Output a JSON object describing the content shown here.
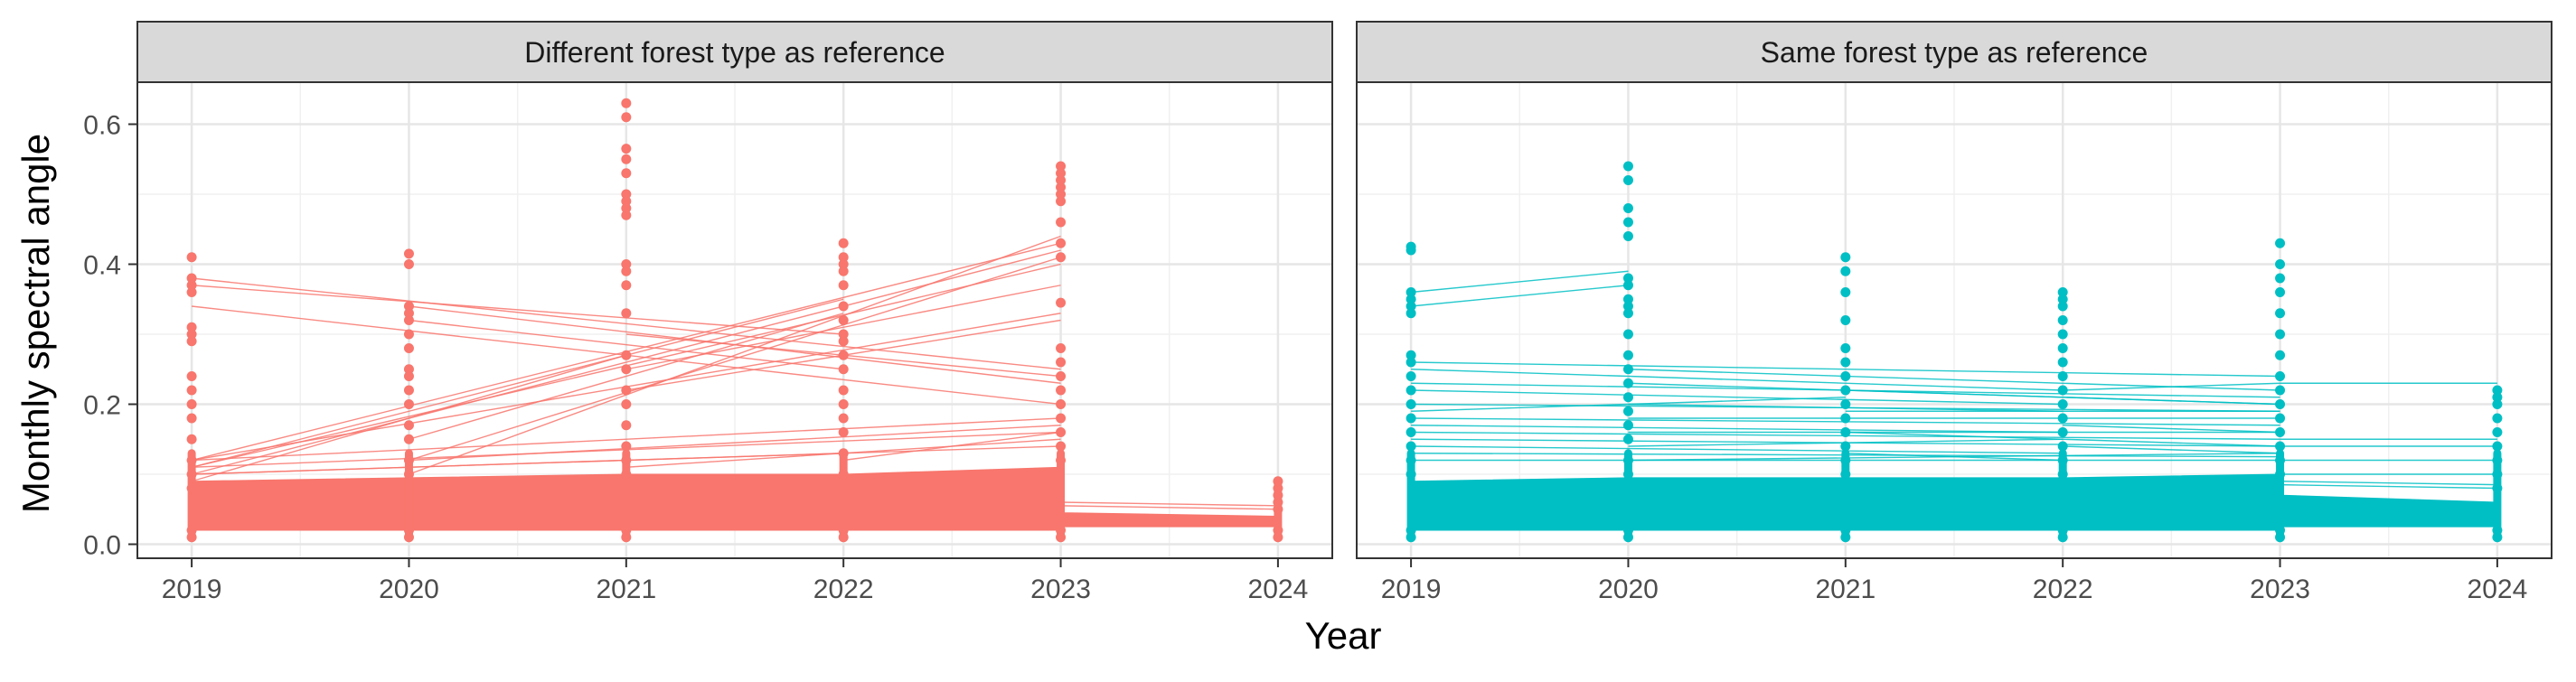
{
  "chart_data": {
    "type": "line",
    "ylabel": "Monthly spectral angle",
    "xlabel": "Year",
    "x_ticks": [
      "2019",
      "2020",
      "2021",
      "2022",
      "2023",
      "2024"
    ],
    "y_ticks": [
      "0.0",
      "0.2",
      "0.4",
      "0.6"
    ],
    "ylim": [
      -0.02,
      0.66
    ],
    "xlim": [
      2018.75,
      2024.25
    ],
    "grid": true,
    "legend": "none",
    "panels": [
      {
        "title": "Different forest type as reference",
        "color": "#F8766D",
        "dense_band": [
          {
            "x": 2019,
            "lo": 0.02,
            "hi": 0.09
          },
          {
            "x": 2020,
            "lo": 0.02,
            "hi": 0.095
          },
          {
            "x": 2021,
            "lo": 0.02,
            "hi": 0.1
          },
          {
            "x": 2022,
            "lo": 0.02,
            "hi": 0.1
          },
          {
            "x": 2023,
            "lo": 0.02,
            "hi": 0.11
          },
          {
            "x": 2023.01,
            "lo": 0.025,
            "hi": 0.045
          },
          {
            "x": 2024,
            "lo": 0.025,
            "hi": 0.04
          }
        ],
        "points": [
          {
            "x": 2019,
            "values": [
              0.01,
              0.02,
              0.08,
              0.1,
              0.12,
              0.15,
              0.18,
              0.2,
              0.22,
              0.24,
              0.29,
              0.3,
              0.31,
              0.36,
              0.37,
              0.38,
              0.41
            ]
          },
          {
            "x": 2020,
            "values": [
              0.01,
              0.02,
              0.1,
              0.12,
              0.15,
              0.17,
              0.2,
              0.22,
              0.24,
              0.25,
              0.28,
              0.3,
              0.32,
              0.33,
              0.34,
              0.4,
              0.415
            ]
          },
          {
            "x": 2021,
            "values": [
              0.01,
              0.02,
              0.1,
              0.12,
              0.14,
              0.17,
              0.2,
              0.22,
              0.25,
              0.27,
              0.33,
              0.37,
              0.39,
              0.4,
              0.47,
              0.48,
              0.49,
              0.5,
              0.53,
              0.55,
              0.565,
              0.61,
              0.63
            ]
          },
          {
            "x": 2022,
            "values": [
              0.01,
              0.02,
              0.1,
              0.13,
              0.16,
              0.18,
              0.2,
              0.22,
              0.25,
              0.27,
              0.29,
              0.3,
              0.32,
              0.34,
              0.37,
              0.39,
              0.4,
              0.41,
              0.43
            ]
          },
          {
            "x": 2023,
            "values": [
              0.01,
              0.02,
              0.12,
              0.14,
              0.16,
              0.18,
              0.2,
              0.22,
              0.24,
              0.26,
              0.28,
              0.345,
              0.41,
              0.43,
              0.46,
              0.49,
              0.5,
              0.51,
              0.52,
              0.53,
              0.54
            ]
          },
          {
            "x": 2024,
            "values": [
              0.01,
              0.02,
              0.05,
              0.06,
              0.07,
              0.08,
              0.09
            ]
          }
        ],
        "highlight_lines": [
          [
            [
              2019,
              0.38
            ],
            [
              2023,
              0.25
            ]
          ],
          [
            [
              2019,
              0.37
            ],
            [
              2022,
              0.3
            ]
          ],
          [
            [
              2019,
              0.34
            ],
            [
              2023,
              0.2
            ]
          ],
          [
            [
              2019,
              0.12
            ],
            [
              2023,
              0.43
            ]
          ],
          [
            [
              2019,
              0.11
            ],
            [
              2023,
              0.4
            ]
          ],
          [
            [
              2019,
              0.1
            ],
            [
              2023,
              0.42
            ]
          ],
          [
            [
              2019,
              0.11
            ],
            [
              2022,
              0.35
            ]
          ],
          [
            [
              2019,
              0.12
            ],
            [
              2023,
              0.33
            ]
          ],
          [
            [
              2019,
              0.09
            ],
            [
              2021,
              0.27
            ]
          ],
          [
            [
              2020,
              0.34
            ],
            [
              2023,
              0.23
            ]
          ],
          [
            [
              2020,
              0.32
            ],
            [
              2022,
              0.25
            ]
          ],
          [
            [
              2020,
              0.1
            ],
            [
              2023,
              0.44
            ]
          ],
          [
            [
              2020,
              0.12
            ],
            [
              2023,
              0.41
            ]
          ],
          [
            [
              2020,
              0.15
            ],
            [
              2022,
              0.33
            ]
          ],
          [
            [
              2021,
              0.3
            ],
            [
              2023,
              0.24
            ]
          ],
          [
            [
              2021,
              0.25
            ],
            [
              2023,
              0.37
            ]
          ],
          [
            [
              2021,
              0.22
            ],
            [
              2023,
              0.32
            ]
          ],
          [
            [
              2019,
              0.12
            ],
            [
              2023,
              0.18
            ]
          ],
          [
            [
              2019,
              0.11
            ],
            [
              2023,
              0.16
            ]
          ],
          [
            [
              2019,
              0.1
            ],
            [
              2023,
              0.14
            ]
          ],
          [
            [
              2020,
              0.12
            ],
            [
              2023,
              0.17
            ]
          ],
          [
            [
              2021,
              0.11
            ],
            [
              2023,
              0.15
            ]
          ],
          [
            [
              2022,
              0.12
            ],
            [
              2023,
              0.16
            ]
          ],
          [
            [
              2019,
              0.1
            ],
            [
              2022,
              0.13
            ]
          ],
          [
            [
              2023,
              0.06
            ],
            [
              2024,
              0.055
            ]
          ],
          [
            [
              2023,
              0.055
            ],
            [
              2024,
              0.05
            ]
          ]
        ]
      },
      {
        "title": "Same forest type as reference",
        "color": "#00BFC4",
        "dense_band": [
          {
            "x": 2019,
            "lo": 0.02,
            "hi": 0.09
          },
          {
            "x": 2020,
            "lo": 0.02,
            "hi": 0.095
          },
          {
            "x": 2021,
            "lo": 0.02,
            "hi": 0.095
          },
          {
            "x": 2022,
            "lo": 0.02,
            "hi": 0.095
          },
          {
            "x": 2023,
            "lo": 0.02,
            "hi": 0.1
          },
          {
            "x": 2023.01,
            "lo": 0.025,
            "hi": 0.07
          },
          {
            "x": 2024,
            "lo": 0.025,
            "hi": 0.06
          }
        ],
        "points": [
          {
            "x": 2019,
            "values": [
              0.01,
              0.02,
              0.1,
              0.12,
              0.14,
              0.16,
              0.18,
              0.2,
              0.22,
              0.24,
              0.26,
              0.27,
              0.33,
              0.34,
              0.35,
              0.36,
              0.42,
              0.425
            ]
          },
          {
            "x": 2020,
            "values": [
              0.01,
              0.02,
              0.1,
              0.12,
              0.15,
              0.17,
              0.19,
              0.21,
              0.23,
              0.25,
              0.27,
              0.3,
              0.33,
              0.34,
              0.35,
              0.37,
              0.38,
              0.44,
              0.46,
              0.48,
              0.52,
              0.54
            ]
          },
          {
            "x": 2021,
            "values": [
              0.01,
              0.02,
              0.1,
              0.12,
              0.14,
              0.16,
              0.18,
              0.2,
              0.22,
              0.24,
              0.26,
              0.28,
              0.32,
              0.36,
              0.39,
              0.41
            ]
          },
          {
            "x": 2022,
            "values": [
              0.01,
              0.02,
              0.1,
              0.12,
              0.14,
              0.16,
              0.18,
              0.2,
              0.22,
              0.24,
              0.26,
              0.28,
              0.3,
              0.32,
              0.34,
              0.35,
              0.36
            ]
          },
          {
            "x": 2023,
            "values": [
              0.01,
              0.02,
              0.1,
              0.12,
              0.14,
              0.16,
              0.18,
              0.2,
              0.22,
              0.24,
              0.27,
              0.3,
              0.33,
              0.36,
              0.38,
              0.4,
              0.43
            ]
          },
          {
            "x": 2024,
            "values": [
              0.01,
              0.02,
              0.08,
              0.1,
              0.12,
              0.14,
              0.16,
              0.18,
              0.2,
              0.21,
              0.22
            ]
          }
        ],
        "highlight_lines": [
          [
            [
              2019,
              0.36
            ],
            [
              2020,
              0.39
            ]
          ],
          [
            [
              2019,
              0.34
            ],
            [
              2020,
              0.37
            ]
          ],
          [
            [
              2019,
              0.26
            ],
            [
              2023,
              0.24
            ]
          ],
          [
            [
              2019,
              0.25
            ],
            [
              2022,
              0.22
            ]
          ],
          [
            [
              2019,
              0.23
            ],
            [
              2023,
              0.21
            ]
          ],
          [
            [
              2019,
              0.22
            ],
            [
              2022,
              0.2
            ]
          ],
          [
            [
              2019,
              0.2
            ],
            [
              2023,
              0.19
            ]
          ],
          [
            [
              2019,
              0.19
            ],
            [
              2021,
              0.21
            ]
          ],
          [
            [
              2019,
              0.18
            ],
            [
              2023,
              0.17
            ]
          ],
          [
            [
              2019,
              0.17
            ],
            [
              2022,
              0.16
            ]
          ],
          [
            [
              2019,
              0.16
            ],
            [
              2023,
              0.15
            ]
          ],
          [
            [
              2019,
              0.15
            ],
            [
              2023,
              0.14
            ]
          ],
          [
            [
              2019,
              0.14
            ],
            [
              2022,
              0.13
            ]
          ],
          [
            [
              2019,
              0.13
            ],
            [
              2023,
              0.125
            ]
          ],
          [
            [
              2019,
              0.12
            ],
            [
              2023,
              0.12
            ]
          ],
          [
            [
              2020,
              0.25
            ],
            [
              2023,
              0.22
            ]
          ],
          [
            [
              2020,
              0.23
            ],
            [
              2023,
              0.2
            ]
          ],
          [
            [
              2020,
              0.2
            ],
            [
              2022,
              0.19
            ]
          ],
          [
            [
              2020,
              0.18
            ],
            [
              2023,
              0.18
            ]
          ],
          [
            [
              2020,
              0.16
            ],
            [
              2023,
              0.16
            ]
          ],
          [
            [
              2020,
              0.14
            ],
            [
              2022,
              0.15
            ]
          ],
          [
            [
              2020,
              0.12
            ],
            [
              2023,
              0.13
            ]
          ],
          [
            [
              2021,
              0.22
            ],
            [
              2023,
              0.2
            ]
          ],
          [
            [
              2021,
              0.19
            ],
            [
              2023,
              0.19
            ]
          ],
          [
            [
              2021,
              0.16
            ],
            [
              2023,
              0.14
            ]
          ],
          [
            [
              2021,
              0.13
            ],
            [
              2022,
              0.12
            ]
          ],
          [
            [
              2022,
              0.22
            ],
            [
              2023,
              0.23
            ]
          ],
          [
            [
              2022,
              0.17
            ],
            [
              2023,
              0.16
            ]
          ],
          [
            [
              2022,
              0.14
            ],
            [
              2023,
              0.13
            ]
          ],
          [
            [
              2023,
              0.23
            ],
            [
              2024,
              0.23
            ]
          ],
          [
            [
              2023,
              0.15
            ],
            [
              2024,
              0.15
            ]
          ],
          [
            [
              2023,
              0.14
            ],
            [
              2024,
              0.14
            ]
          ],
          [
            [
              2023,
              0.12
            ],
            [
              2024,
              0.12
            ]
          ],
          [
            [
              2023,
              0.1
            ],
            [
              2024,
              0.1
            ]
          ],
          [
            [
              2023,
              0.09
            ],
            [
              2024,
              0.085
            ]
          ],
          [
            [
              2023,
              0.085
            ],
            [
              2024,
              0.08
            ]
          ]
        ]
      }
    ]
  }
}
